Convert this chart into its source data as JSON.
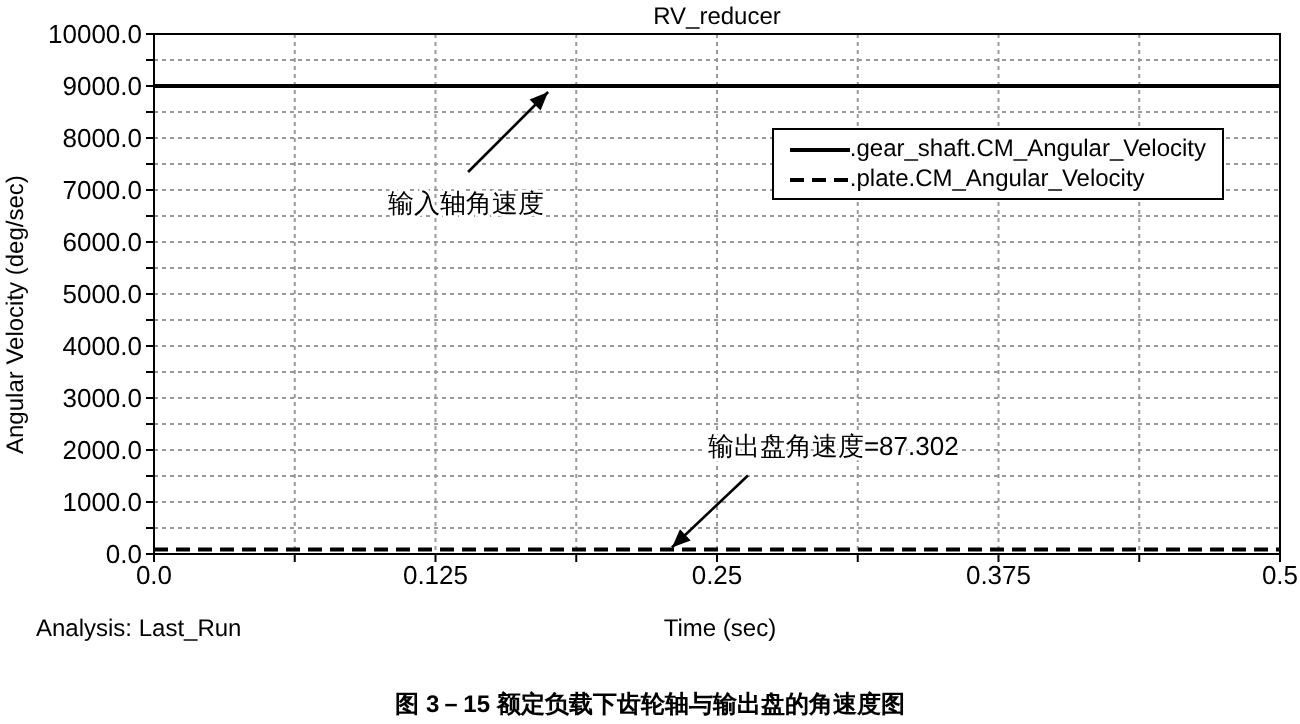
{
  "chart_data": {
    "type": "line",
    "title": "RV_reducer",
    "xlabel": "Time (sec)",
    "ylabel": "Angular Velocity (deg/sec)",
    "x": [
      0,
      0.5
    ],
    "series": [
      {
        "name": ".gear_shaft.CM_Angular_Velocity",
        "color": "#000000",
        "line_style": "solid",
        "values": [
          9000,
          9000
        ]
      },
      {
        "name": ".plate.CM_Angular_Velocity",
        "color": "#000000",
        "line_style": "dashed",
        "values": [
          87.302,
          87.302
        ]
      }
    ],
    "xlim": [
      0,
      0.5
    ],
    "xticks": [
      {
        "value": 0,
        "label": "0.0"
      },
      {
        "value": 0.0625,
        "label": null
      },
      0.125,
      {
        "value": 0.1875,
        "label": null
      },
      0.25,
      {
        "value": 0.3125,
        "label": null
      },
      0.375,
      {
        "value": 0.4375,
        "label": null
      },
      0.5
    ],
    "ylim": [
      0,
      10000
    ],
    "yticks": [
      {
        "value": 0,
        "label": "0.0"
      },
      {
        "value": 500,
        "label": null
      },
      {
        "value": 1000,
        "label": "1000.0"
      },
      {
        "value": 1500,
        "label": null
      },
      {
        "value": 2000,
        "label": "2000.0"
      },
      {
        "value": 2500,
        "label": null
      },
      {
        "value": 3000,
        "label": "3000.0"
      },
      {
        "value": 3500,
        "label": null
      },
      {
        "value": 4000,
        "label": "4000.0"
      },
      {
        "value": 4500,
        "label": null
      },
      {
        "value": 5000,
        "label": "5000.0"
      },
      {
        "value": 5500,
        "label": null
      },
      {
        "value": 6000,
        "label": "6000.0"
      },
      {
        "value": 6500,
        "label": null
      },
      {
        "value": 7000,
        "label": "7000.0"
      },
      {
        "value": 7500,
        "label": null
      },
      {
        "value": 8000,
        "label": "8000.0"
      },
      {
        "value": 8500,
        "label": null
      },
      {
        "value": 9000,
        "label": "9000.0"
      },
      {
        "value": 9500,
        "label": null
      },
      {
        "value": 10000,
        "label": "10000.0"
      }
    ],
    "grid": true,
    "legend": "top right",
    "marker": "none",
    "annotations": [
      {
        "text": "输入轴角速度",
        "x": 0.175,
        "y": 9000
      },
      {
        "text": "输出盘角速度=87.302",
        "x": 0.23,
        "y": 87.302
      },
      "Analysis:  Last_Run",
      "图 3－15 额定负载下齿轮轴与输出盘的角速度图"
    ]
  }
}
